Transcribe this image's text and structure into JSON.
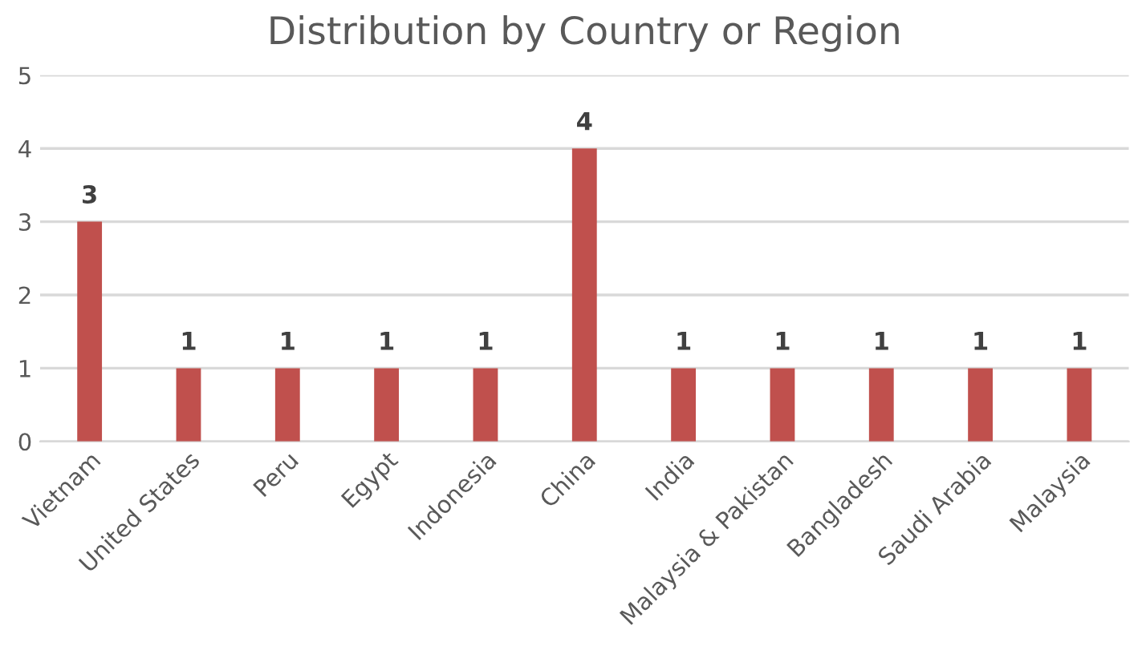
{
  "chart_data": {
    "type": "bar",
    "title": "Distribution by Country or Region",
    "categories": [
      "Vietnam",
      "United States",
      "Peru",
      "Egypt",
      "Indonesia",
      "China",
      "India",
      "Malaysia & Pakistan",
      "Bangladesh",
      "Saudi Arabia",
      "Malaysia"
    ],
    "values": [
      3,
      1,
      1,
      1,
      1,
      4,
      1,
      1,
      1,
      1,
      1
    ],
    "color": "#c0504d",
    "ylim": [
      0,
      5
    ],
    "yticks": [
      0,
      1,
      2,
      3,
      4,
      5
    ],
    "grid": "y",
    "data_labels": true
  }
}
